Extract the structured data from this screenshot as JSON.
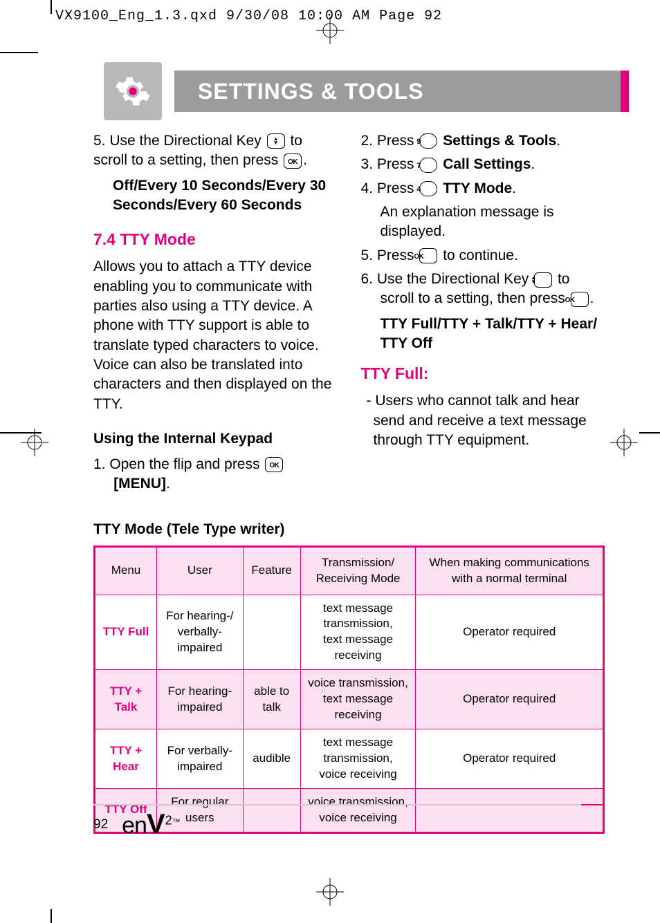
{
  "slug": "VX9100_Eng_1.3.qxd   9/30/08   10:00 AM   Page 92",
  "header": {
    "title": "SETTINGS & TOOLS"
  },
  "colors": {
    "accent": "#e6007e",
    "gray_bar": "#9c9c9c",
    "gray_box": "#b8b8b8",
    "table_shade": "#fbe1ef"
  },
  "left_col": {
    "step5_a": "5.  Use the Directional Key ",
    "step5_b": " to scroll to a setting, then press ",
    "step5_c": ".",
    "options": "Off/Every 10 Seconds/Every 30 Seconds/Every 60 Seconds",
    "sec_heading": "7.4 TTY Mode",
    "body": "Allows you to attach a TTY device enabling you to communicate with parties also using a TTY device. A phone with TTY support is able to translate typed characters to voice. Voice can also be translated into characters and then displayed on the TTY.",
    "sub_heading": "Using the Internal Keypad",
    "step1_a": "1.  Open the flip and press ",
    "step1_b": "[MENU]",
    "step1_c": "."
  },
  "right_col": {
    "s2_a": "2.  Press ",
    "s2_key": "9",
    "s2_b": " Settings & Tools",
    "s3_a": "3.  Press ",
    "s3_key": "7",
    "s3_b": " Call Settings",
    "s4_a": "4.  Press ",
    "s4_key": "4",
    "s4_b": " TTY Mode",
    "s4_note": "An explanation message is displayed.",
    "s5_a": "5.  Press ",
    "s5_b": " to continue.",
    "s6_a": "6.  Use the Directional Key ",
    "s6_b": " to scroll to a setting, then press ",
    "s6_c": ".",
    "options": "TTY Full/TTY + Talk/TTY + Hear/ TTY Off",
    "full_heading": "TTY Full:",
    "full_body": "- Users who cannot  talk and hear send and receive a text message through TTY equipment."
  },
  "table_title": "TTY Mode (Tele Type writer)",
  "table": {
    "headers": [
      "Menu",
      "User",
      "Feature",
      "Transmission/\nReceiving Mode",
      "When making communications with a normal terminal"
    ],
    "rows": [
      {
        "menu": "TTY Full",
        "user": "For hearing-/ verbally-impaired",
        "feature": "",
        "mode": "text message transmission, text message receiving",
        "normal": "Operator required",
        "shade": false
      },
      {
        "menu": "TTY + Talk",
        "user": "For hearing-impaired",
        "feature": "able to talk",
        "mode": "voice transmission, text message receiving",
        "normal": "Operator required",
        "shade": true
      },
      {
        "menu": "TTY + Hear",
        "user": "For verbally-impaired",
        "feature": "audible",
        "mode": "text message transmission, voice receiving",
        "normal": "Operator required",
        "shade": false
      },
      {
        "menu": "TTY Off",
        "user": "For regular users",
        "feature": "",
        "mode": "voice transmission, voice receiving",
        "normal": "",
        "shade": true
      }
    ]
  },
  "footer": {
    "page": "92",
    "logo_en": "en",
    "logo_v": "V",
    "logo_sup": "2",
    "logo_tm": "™"
  }
}
